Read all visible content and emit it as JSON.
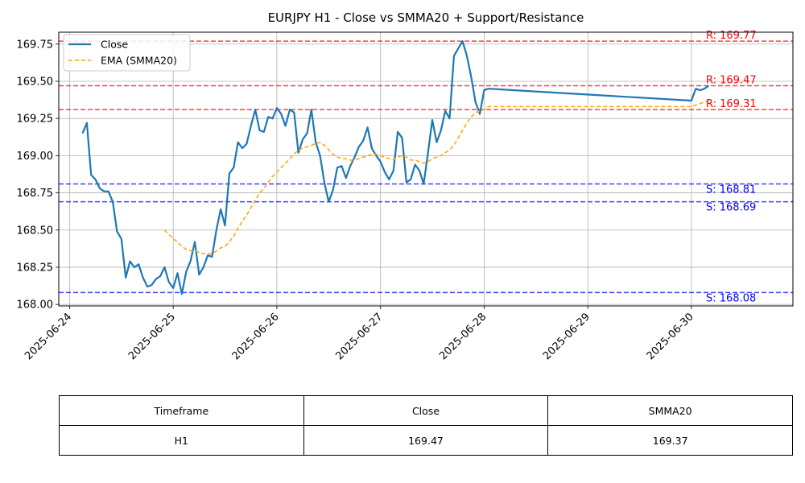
{
  "chart_data": {
    "type": "line",
    "title": "EURJPY H1 - Close vs SMMA20 + Support/Resistance",
    "xlabel": "",
    "ylabel": "",
    "x_ticks": [
      "2025-06-24",
      "2025-06-25",
      "2025-06-26",
      "2025-06-27",
      "2025-06-28",
      "2025-06-29",
      "2025-06-30"
    ],
    "y_ticks": [
      "168.00",
      "168.25",
      "168.50",
      "168.75",
      "169.00",
      "169.25",
      "169.50",
      "169.75"
    ],
    "ylim": [
      167.99,
      169.83
    ],
    "xlim": [
      "2025-06-23T21:30",
      "2025-06-30T23:30"
    ],
    "grid": true,
    "legend": "top-left",
    "series": [
      {
        "name": "Close",
        "color": "#1f77b4",
        "style": "solid",
        "points": [
          [
            "2025-06-24T03:00",
            169.15
          ],
          [
            "2025-06-24T04:00",
            169.22
          ],
          [
            "2025-06-24T05:00",
            168.87
          ],
          [
            "2025-06-24T06:00",
            168.84
          ],
          [
            "2025-06-24T07:00",
            168.78
          ],
          [
            "2025-06-24T08:00",
            168.76
          ],
          [
            "2025-06-24T09:00",
            168.76
          ],
          [
            "2025-06-24T10:00",
            168.69
          ],
          [
            "2025-06-24T11:00",
            168.49
          ],
          [
            "2025-06-24T12:00",
            168.44
          ],
          [
            "2025-06-24T13:00",
            168.18
          ],
          [
            "2025-06-24T14:00",
            168.29
          ],
          [
            "2025-06-24T15:00",
            168.25
          ],
          [
            "2025-06-24T16:00",
            168.27
          ],
          [
            "2025-06-24T17:00",
            168.18
          ],
          [
            "2025-06-24T18:00",
            168.12
          ],
          [
            "2025-06-24T19:00",
            168.13
          ],
          [
            "2025-06-24T20:00",
            168.17
          ],
          [
            "2025-06-24T21:00",
            168.19
          ],
          [
            "2025-06-24T22:00",
            168.25
          ],
          [
            "2025-06-24T23:00",
            168.15
          ],
          [
            "2025-06-25T00:00",
            168.11
          ],
          [
            "2025-06-25T01:00",
            168.21
          ],
          [
            "2025-06-25T02:00",
            168.07
          ],
          [
            "2025-06-25T03:00",
            168.22
          ],
          [
            "2025-06-25T04:00",
            168.29
          ],
          [
            "2025-06-25T05:00",
            168.42
          ],
          [
            "2025-06-25T06:00",
            168.2
          ],
          [
            "2025-06-25T07:00",
            168.25
          ],
          [
            "2025-06-25T08:00",
            168.33
          ],
          [
            "2025-06-25T09:00",
            168.32
          ],
          [
            "2025-06-25T10:00",
            168.5
          ],
          [
            "2025-06-25T11:00",
            168.64
          ],
          [
            "2025-06-25T12:00",
            168.53
          ],
          [
            "2025-06-25T13:00",
            168.88
          ],
          [
            "2025-06-25T14:00",
            168.92
          ],
          [
            "2025-06-25T15:00",
            169.09
          ],
          [
            "2025-06-25T16:00",
            169.05
          ],
          [
            "2025-06-25T17:00",
            169.08
          ],
          [
            "2025-06-25T18:00",
            169.2
          ],
          [
            "2025-06-25T19:00",
            169.31
          ],
          [
            "2025-06-25T20:00",
            169.17
          ],
          [
            "2025-06-25T21:00",
            169.16
          ],
          [
            "2025-06-25T22:00",
            169.26
          ],
          [
            "2025-06-25T23:00",
            169.25
          ],
          [
            "2025-06-26T00:00",
            169.32
          ],
          [
            "2025-06-26T01:00",
            169.28
          ],
          [
            "2025-06-26T02:00",
            169.2
          ],
          [
            "2025-06-26T03:00",
            169.31
          ],
          [
            "2025-06-26T04:00",
            169.29
          ],
          [
            "2025-06-26T05:00",
            169.02
          ],
          [
            "2025-06-26T06:00",
            169.11
          ],
          [
            "2025-06-26T07:00",
            169.15
          ],
          [
            "2025-06-26T08:00",
            169.31
          ],
          [
            "2025-06-26T09:00",
            169.09
          ],
          [
            "2025-06-26T10:00",
            169.0
          ],
          [
            "2025-06-26T11:00",
            168.82
          ],
          [
            "2025-06-26T12:00",
            168.69
          ],
          [
            "2025-06-26T13:00",
            168.77
          ],
          [
            "2025-06-26T14:00",
            168.92
          ],
          [
            "2025-06-26T15:00",
            168.93
          ],
          [
            "2025-06-26T16:00",
            168.85
          ],
          [
            "2025-06-26T17:00",
            168.93
          ],
          [
            "2025-06-26T18:00",
            168.99
          ],
          [
            "2025-06-26T19:00",
            169.06
          ],
          [
            "2025-06-26T20:00",
            169.1
          ],
          [
            "2025-06-26T21:00",
            169.19
          ],
          [
            "2025-06-26T22:00",
            169.05
          ],
          [
            "2025-06-26T23:00",
            169.0
          ],
          [
            "2025-06-27T00:00",
            168.96
          ],
          [
            "2025-06-27T01:00",
            168.89
          ],
          [
            "2025-06-27T02:00",
            168.84
          ],
          [
            "2025-06-27T03:00",
            168.9
          ],
          [
            "2025-06-27T04:00",
            169.16
          ],
          [
            "2025-06-27T05:00",
            169.12
          ],
          [
            "2025-06-27T06:00",
            168.82
          ],
          [
            "2025-06-27T07:00",
            168.84
          ],
          [
            "2025-06-27T08:00",
            168.94
          ],
          [
            "2025-06-27T09:00",
            168.9
          ],
          [
            "2025-06-27T10:00",
            168.81
          ],
          [
            "2025-06-27T11:00",
            169.02
          ],
          [
            "2025-06-27T12:00",
            169.24
          ],
          [
            "2025-06-27T13:00",
            169.09
          ],
          [
            "2025-06-27T14:00",
            169.17
          ],
          [
            "2025-06-27T15:00",
            169.3
          ],
          [
            "2025-06-27T16:00",
            169.25
          ],
          [
            "2025-06-27T17:00",
            169.67
          ],
          [
            "2025-06-27T18:00",
            169.72
          ],
          [
            "2025-06-27T19:00",
            169.77
          ],
          [
            "2025-06-27T20:00",
            169.67
          ],
          [
            "2025-06-27T21:00",
            169.53
          ],
          [
            "2025-06-27T22:00",
            169.36
          ],
          [
            "2025-06-27T23:00",
            169.28
          ],
          [
            "2025-06-28T00:00",
            169.44
          ],
          [
            "2025-06-28T01:00",
            169.45
          ],
          [
            "2025-06-30T00:00",
            169.37
          ],
          [
            "2025-06-30T01:00",
            169.45
          ],
          [
            "2025-06-30T02:00",
            169.44
          ],
          [
            "2025-06-30T03:00",
            169.45
          ],
          [
            "2025-06-30T04:00",
            169.47
          ]
        ]
      },
      {
        "name": "EMA (SMMA20)",
        "color": "#ffa500",
        "style": "dashed",
        "points": [
          [
            "2025-06-24T22:00",
            168.5
          ],
          [
            "2025-06-24T23:00",
            168.47
          ],
          [
            "2025-06-25T00:00",
            168.44
          ],
          [
            "2025-06-25T01:00",
            168.42
          ],
          [
            "2025-06-25T02:00",
            168.39
          ],
          [
            "2025-06-25T03:00",
            168.37
          ],
          [
            "2025-06-25T04:00",
            168.36
          ],
          [
            "2025-06-25T05:00",
            168.36
          ],
          [
            "2025-06-25T06:00",
            168.35
          ],
          [
            "2025-06-25T07:00",
            168.34
          ],
          [
            "2025-06-25T08:00",
            168.34
          ],
          [
            "2025-06-25T09:00",
            168.34
          ],
          [
            "2025-06-25T10:00",
            168.36
          ],
          [
            "2025-06-25T11:00",
            168.38
          ],
          [
            "2025-06-25T12:00",
            168.39
          ],
          [
            "2025-06-25T13:00",
            168.42
          ],
          [
            "2025-06-25T14:00",
            168.46
          ],
          [
            "2025-06-25T15:00",
            168.51
          ],
          [
            "2025-06-25T16:00",
            168.56
          ],
          [
            "2025-06-25T17:00",
            168.6
          ],
          [
            "2025-06-25T18:00",
            168.65
          ],
          [
            "2025-06-25T19:00",
            168.7
          ],
          [
            "2025-06-25T20:00",
            168.75
          ],
          [
            "2025-06-25T21:00",
            168.78
          ],
          [
            "2025-06-25T22:00",
            168.82
          ],
          [
            "2025-06-25T23:00",
            168.86
          ],
          [
            "2025-06-26T00:00",
            168.89
          ],
          [
            "2025-06-26T01:00",
            168.92
          ],
          [
            "2025-06-26T02:00",
            168.95
          ],
          [
            "2025-06-26T03:00",
            168.98
          ],
          [
            "2025-06-26T04:00",
            169.01
          ],
          [
            "2025-06-26T05:00",
            169.04
          ],
          [
            "2025-06-26T06:00",
            169.05
          ],
          [
            "2025-06-26T07:00",
            169.06
          ],
          [
            "2025-06-26T08:00",
            169.07
          ],
          [
            "2025-06-26T09:00",
            169.08
          ],
          [
            "2025-06-26T10:00",
            169.09
          ],
          [
            "2025-06-26T11:00",
            169.07
          ],
          [
            "2025-06-26T12:00",
            169.04
          ],
          [
            "2025-06-26T13:00",
            169.01
          ],
          [
            "2025-06-26T14:00",
            168.99
          ],
          [
            "2025-06-26T15:00",
            168.98
          ],
          [
            "2025-06-26T16:00",
            168.98
          ],
          [
            "2025-06-26T17:00",
            168.97
          ],
          [
            "2025-06-26T18:00",
            168.97
          ],
          [
            "2025-06-26T19:00",
            168.98
          ],
          [
            "2025-06-26T20:00",
            168.99
          ],
          [
            "2025-06-26T21:00",
            169.0
          ],
          [
            "2025-06-26T22:00",
            169.01
          ],
          [
            "2025-06-26T23:00",
            169.01
          ],
          [
            "2025-06-27T00:00",
            169.0
          ],
          [
            "2025-06-27T01:00",
            168.99
          ],
          [
            "2025-06-27T02:00",
            168.98
          ],
          [
            "2025-06-27T03:00",
            168.97
          ],
          [
            "2025-06-27T04:00",
            168.99
          ],
          [
            "2025-06-27T05:00",
            169.0
          ],
          [
            "2025-06-27T06:00",
            168.99
          ],
          [
            "2025-06-27T07:00",
            168.97
          ],
          [
            "2025-06-27T08:00",
            168.97
          ],
          [
            "2025-06-27T09:00",
            168.96
          ],
          [
            "2025-06-27T10:00",
            168.95
          ],
          [
            "2025-06-27T11:00",
            168.96
          ],
          [
            "2025-06-27T12:00",
            168.98
          ],
          [
            "2025-06-27T13:00",
            168.99
          ],
          [
            "2025-06-27T14:00",
            169.0
          ],
          [
            "2025-06-27T15:00",
            169.02
          ],
          [
            "2025-06-27T16:00",
            169.04
          ],
          [
            "2025-06-27T17:00",
            169.07
          ],
          [
            "2025-06-27T18:00",
            169.12
          ],
          [
            "2025-06-27T19:00",
            169.17
          ],
          [
            "2025-06-27T20:00",
            169.22
          ],
          [
            "2025-06-27T21:00",
            169.26
          ],
          [
            "2025-06-27T22:00",
            169.29
          ],
          [
            "2025-06-27T23:00",
            169.3
          ],
          [
            "2025-06-28T00:00",
            169.31
          ],
          [
            "2025-06-28T01:00",
            169.33
          ],
          [
            "2025-06-30T00:00",
            169.33
          ],
          [
            "2025-06-30T01:00",
            169.34
          ],
          [
            "2025-06-30T02:00",
            169.35
          ],
          [
            "2025-06-30T03:00",
            169.36
          ],
          [
            "2025-06-30T04:00",
            169.37
          ]
        ]
      }
    ],
    "levels": [
      {
        "kind": "resistance",
        "value": 169.77,
        "label": "R: 169.77",
        "color": "#ff0000"
      },
      {
        "kind": "resistance",
        "value": 169.47,
        "label": "R: 169.47",
        "color": "#ff0000"
      },
      {
        "kind": "resistance",
        "value": 169.31,
        "label": "R: 169.31",
        "color": "#ff0000"
      },
      {
        "kind": "support",
        "value": 168.81,
        "label": "S: 168.81",
        "color": "#0000ff"
      },
      {
        "kind": "support",
        "value": 168.69,
        "label": "S: 168.69",
        "color": "#0000ff"
      },
      {
        "kind": "support",
        "value": 168.08,
        "label": "S: 168.08",
        "color": "#0000ff"
      }
    ]
  },
  "table": {
    "headers": [
      "Timeframe",
      "Close",
      "SMMA20"
    ],
    "rows": [
      [
        "H1",
        "169.47",
        "169.37"
      ]
    ]
  }
}
